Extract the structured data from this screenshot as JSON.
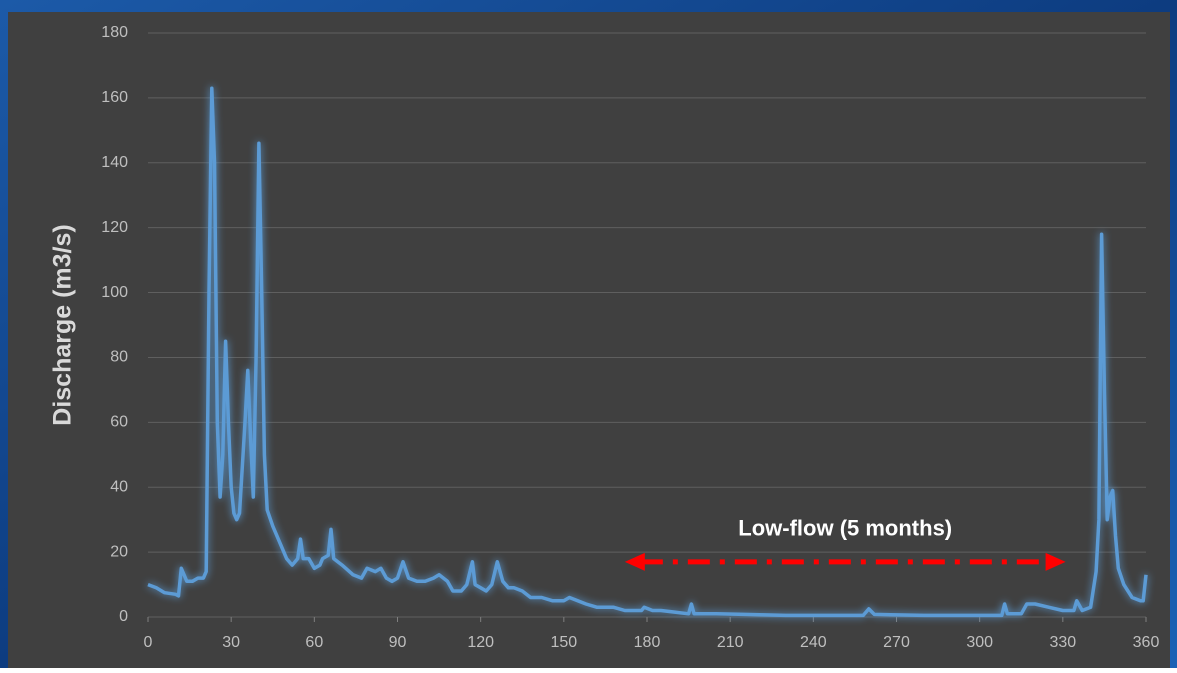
{
  "chart_data": {
    "type": "line",
    "y_label": "Discharge (m3/s)",
    "color": "#5b9bd5",
    "grid": true,
    "xlim": [
      0,
      360
    ],
    "xticks": [
      0,
      30,
      60,
      90,
      120,
      150,
      180,
      210,
      240,
      270,
      300,
      330,
      360
    ],
    "ylim": [
      0,
      180
    ],
    "yticks": [
      0,
      20,
      40,
      60,
      80,
      100,
      120,
      140,
      160,
      180
    ],
    "x": [
      0,
      3,
      6,
      10,
      11,
      12,
      14,
      16,
      18,
      20,
      21,
      22,
      23,
      24,
      25,
      26,
      27,
      28,
      29,
      30,
      31,
      32,
      33,
      35,
      36,
      37,
      38,
      39,
      40,
      41,
      42,
      43,
      45,
      47,
      50,
      52,
      54,
      55,
      56,
      58,
      60,
      62,
      63,
      65,
      66,
      67,
      70,
      74,
      77,
      79,
      82,
      84,
      86,
      88,
      90,
      92,
      94,
      97,
      100,
      103,
      105,
      108,
      110,
      113,
      115,
      117,
      118,
      120,
      122,
      124,
      126,
      128,
      130,
      132,
      135,
      138,
      142,
      146,
      150,
      152,
      155,
      158,
      162,
      168,
      172,
      178,
      179,
      182,
      185,
      190,
      195,
      196,
      197,
      205,
      215,
      230,
      250,
      258,
      260,
      262,
      280,
      300,
      308,
      309,
      310,
      315,
      317,
      320,
      325,
      330,
      334,
      335,
      337,
      340,
      342,
      343,
      344,
      345,
      346,
      347,
      348,
      349,
      350,
      352,
      355,
      358,
      359,
      360
    ],
    "values": [
      10,
      9,
      7.5,
      7,
      6.5,
      15,
      11,
      11,
      12,
      12,
      14,
      100,
      163,
      140,
      60,
      37,
      50,
      85,
      60,
      40,
      32,
      30,
      32,
      60,
      76,
      55,
      37,
      80,
      146,
      100,
      50,
      33,
      28,
      24,
      18,
      16,
      18,
      24,
      18,
      18,
      15,
      16,
      18,
      19,
      27,
      18,
      16,
      13,
      12,
      15,
      14,
      15,
      12,
      11,
      12,
      17,
      12,
      11,
      11,
      12,
      13,
      11,
      8,
      8,
      10,
      17,
      10,
      9,
      8,
      10,
      17,
      11,
      9,
      9,
      8,
      6,
      6,
      5,
      5,
      6,
      5,
      4,
      3,
      3,
      2,
      2,
      3,
      2,
      2,
      1.5,
      1,
      4,
      1,
      1,
      0.8,
      0.5,
      0.5,
      0.5,
      2.5,
      0.8,
      0.5,
      0.5,
      0.5,
      4,
      1,
      1,
      4,
      4,
      3,
      2,
      2,
      5,
      2,
      3,
      14,
      30,
      118,
      70,
      30,
      37,
      39,
      25,
      15,
      10,
      6,
      5,
      5,
      13
    ],
    "annotation": {
      "text": "Low-flow (5 months)",
      "x_start": 172,
      "x_end": 331,
      "y": 17,
      "color": "#ff0000"
    }
  }
}
